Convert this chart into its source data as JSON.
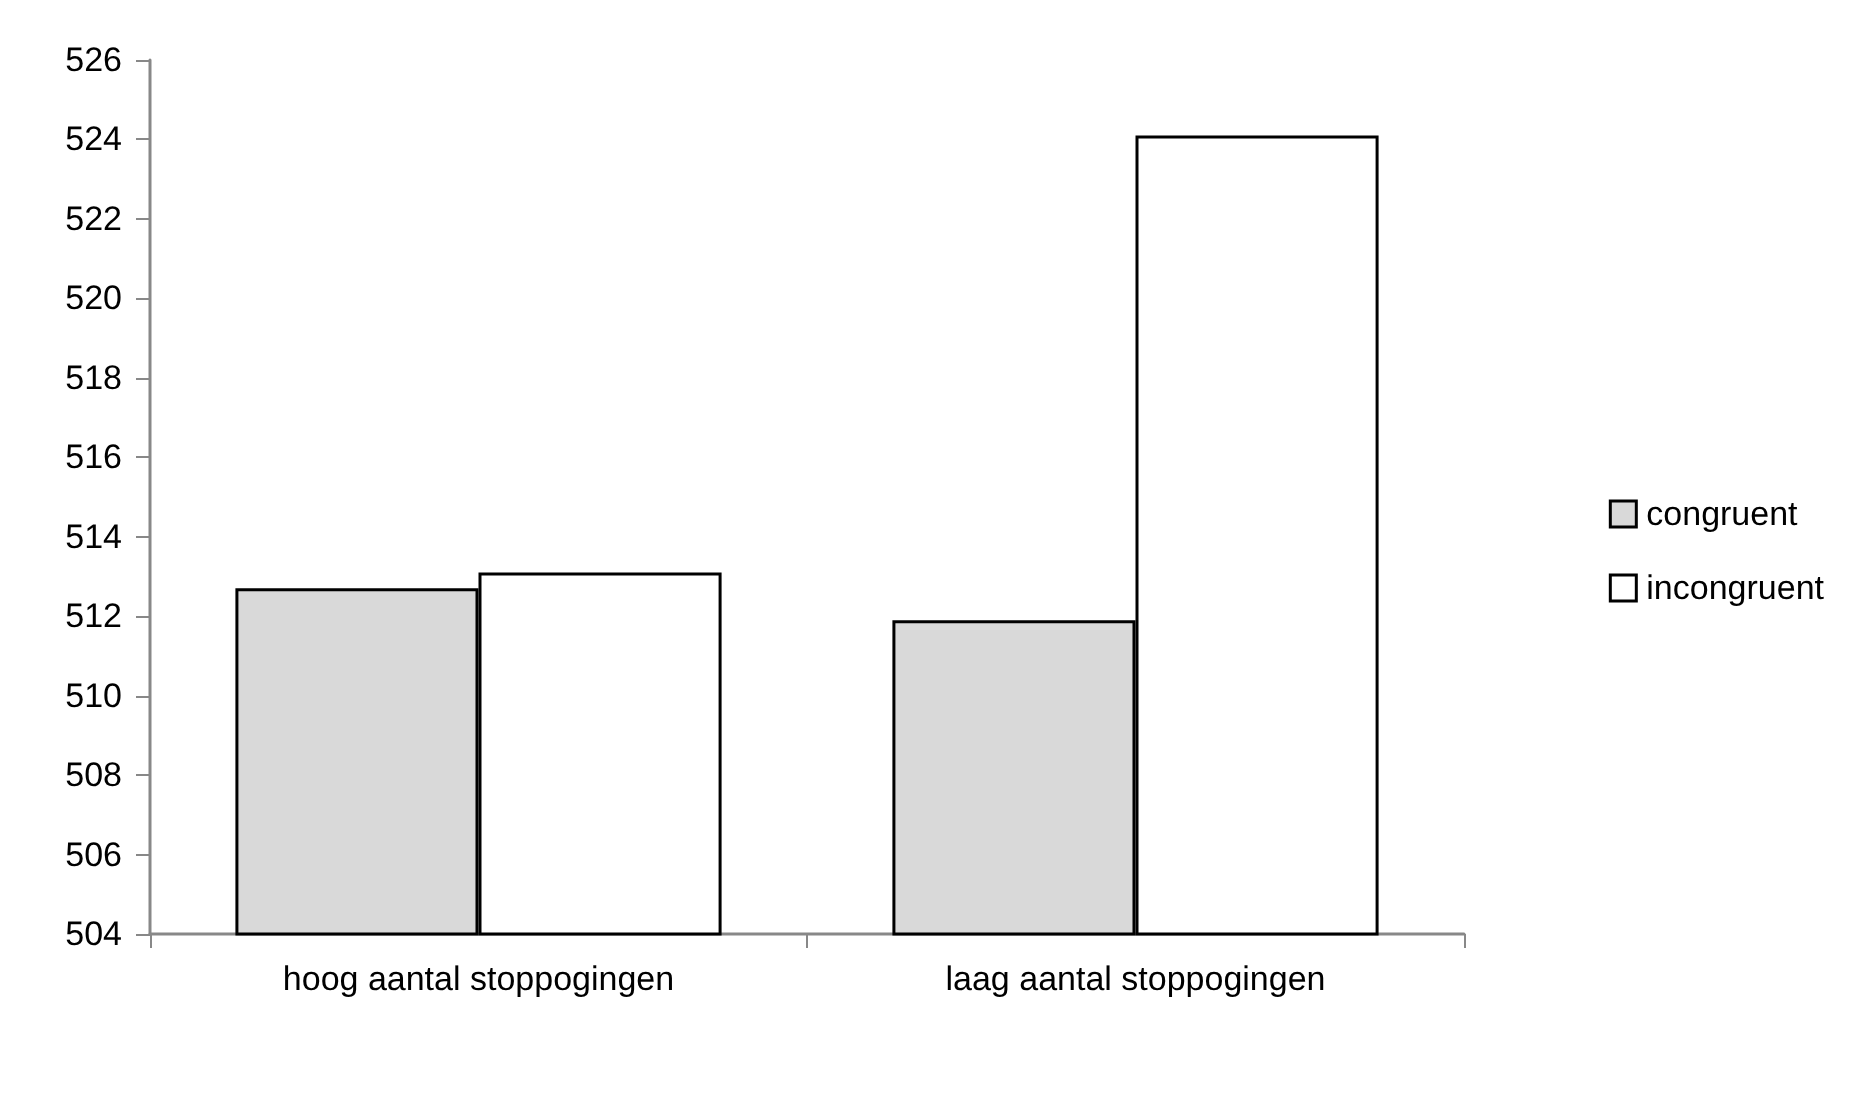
{
  "chart_data": {
    "type": "bar",
    "categories": [
      "hoog aantal stoppogingen",
      "laag aantal stoppogingen"
    ],
    "series": [
      {
        "name": "congruent",
        "color": "#d9d9d9",
        "values": [
          512.7,
          511.9
        ]
      },
      {
        "name": "incongruent",
        "color": "#ffffff",
        "values": [
          513.1,
          524.1
        ]
      }
    ],
    "ylim": [
      504,
      526
    ],
    "yticks": [
      504,
      506,
      508,
      510,
      512,
      514,
      516,
      518,
      520,
      522,
      524,
      526
    ],
    "grid": false,
    "legend": "right"
  }
}
